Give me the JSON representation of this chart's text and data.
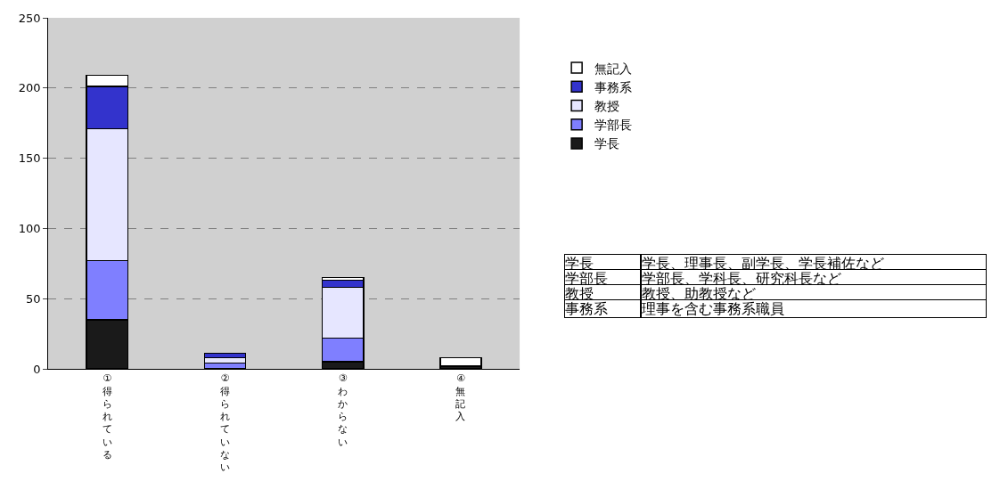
{
  "chart_data": {
    "type": "bar",
    "stacked": true,
    "categories": [
      "①得られている",
      "②得られていない",
      "③わからない",
      "④無記入"
    ],
    "series": [
      {
        "name": "学長",
        "color": "#1a1a1a",
        "values": [
          35,
          null,
          5,
          2
        ]
      },
      {
        "name": "学部長",
        "color": "#7f7fff",
        "values": [
          42,
          4,
          17,
          null
        ]
      },
      {
        "name": "教授",
        "color": "#e6e6ff",
        "values": [
          94,
          4,
          36,
          null
        ]
      },
      {
        "name": "事務系",
        "color": "#3333cc",
        "values": [
          30,
          3,
          5,
          null
        ]
      },
      {
        "name": "無記入",
        "color": "#ffffff",
        "values": [
          8,
          null,
          2,
          6
        ]
      }
    ],
    "ylim": [
      0,
      250
    ],
    "yticks": [
      0,
      50,
      100,
      150,
      200,
      250
    ],
    "grid": "y",
    "legend": "right",
    "annotations": [
      "学長",
      "学長、理事長、副学長、学長補佐など",
      "学部長",
      "学部長、学科長、研究科長など",
      "教授",
      "教授、助教授など",
      "事務系",
      "理事を含む事務系職員"
    ]
  }
}
